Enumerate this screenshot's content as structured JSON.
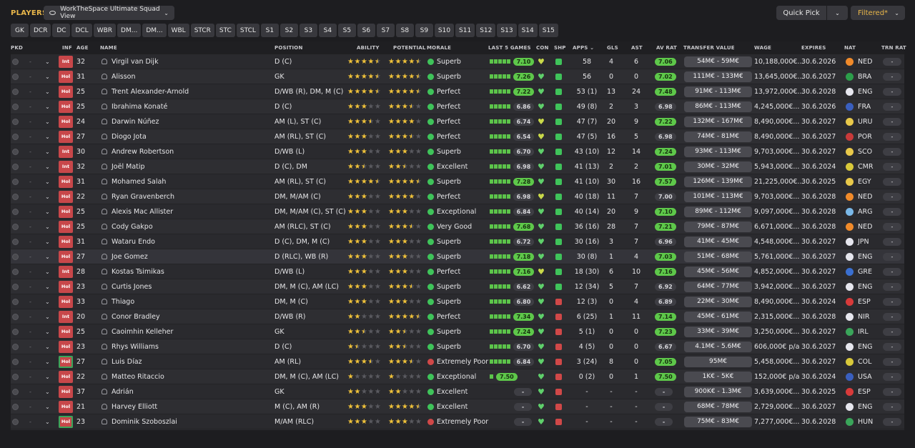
{
  "header": {
    "title": "PLAYERS",
    "view_name": "WorkTheSpace Ultimate Squad View",
    "quick_pick": "Quick Pick",
    "filtered": "Filtered*"
  },
  "positions": [
    "GK",
    "DCR",
    "DC",
    "DCL",
    "WBR",
    "DM...",
    "DM...",
    "WBL",
    "STCR",
    "STC",
    "STCL",
    "S1",
    "S2",
    "S3",
    "S4",
    "S5",
    "S6",
    "S7",
    "S8",
    "S9",
    "S10",
    "S11",
    "S12",
    "S13",
    "S14",
    "S15"
  ],
  "columns": {
    "pkd": "PKD",
    "inf": "INF",
    "age": "AGE",
    "name": "NAME",
    "position": "POSITION",
    "ability": "ABILITY",
    "potential": "POTENTIAL",
    "morale": "MORALE",
    "last5": "LAST 5 GAMES",
    "con": "CON",
    "shp": "SHP",
    "apps": "APPS",
    "gls": "GLS",
    "ast": "AST",
    "avrat": "AV RAT",
    "tv": "TRANSFER VALUE",
    "wage": "WAGE",
    "expires": "EXPIRES",
    "nat": "NAT",
    "trn": "TRN RAT"
  },
  "colors": {
    "accent": "#e8b64a",
    "good": "#5ec84a",
    "bad": "#d04848"
  },
  "players": [
    {
      "inf": "Int",
      "age": "32",
      "name": "Virgil van Dijk",
      "position": "D (C)",
      "ability": 4.5,
      "potential": 4.5,
      "morale": "Superb",
      "mood": "good",
      "l5": 5,
      "l5rat": "7.10",
      "l5g": true,
      "con": "y",
      "shp": "g",
      "apps": "58",
      "gls": "4",
      "ast": "6",
      "avrat": "7.06",
      "avg": true,
      "tv": "54M€ - 59M€",
      "wage": "10,188,000€...",
      "expires": "30.6.2026",
      "nat": "NED",
      "flag": "#f08a2a",
      "trn": "-"
    },
    {
      "inf": "Hol",
      "age": "31",
      "name": "Alisson",
      "position": "GK",
      "ability": 4.5,
      "potential": 4.5,
      "morale": "Superb",
      "mood": "good",
      "l5": 5,
      "l5rat": "7.26",
      "l5g": true,
      "con": "g",
      "shp": "g",
      "apps": "56",
      "gls": "0",
      "ast": "0",
      "avrat": "7.02",
      "avg": true,
      "tv": "111M€ - 133M€",
      "wage": "13,645,000€...",
      "expires": "30.6.2027",
      "nat": "BRA",
      "flag": "#2c9e4a",
      "trn": "-"
    },
    {
      "inf": "Hol",
      "age": "25",
      "name": "Trent Alexander-Arnold",
      "position": "D/WB (R), DM, M (C)",
      "ability": 4.5,
      "potential": 4.5,
      "morale": "Perfect",
      "mood": "good",
      "l5": 5,
      "l5rat": "7.22",
      "l5g": true,
      "con": "g",
      "shp": "g",
      "apps": "53 (1)",
      "gls": "13",
      "ast": "24",
      "avrat": "7.48",
      "avg": true,
      "tv": "91M€ - 113M€",
      "wage": "13,972,000€...",
      "expires": "30.6.2028",
      "nat": "ENG",
      "flag": "#e6e6ee",
      "trn": "-"
    },
    {
      "inf": "Hol",
      "age": "25",
      "name": "Ibrahima Konaté",
      "position": "D (C)",
      "ability": 3,
      "potential": 3.5,
      "morale": "Perfect",
      "mood": "good",
      "l5": 5,
      "l5rat": "6.86",
      "l5g": false,
      "con": "g",
      "shp": "g",
      "apps": "49 (8)",
      "gls": "2",
      "ast": "3",
      "avrat": "6.98",
      "avg": false,
      "tv": "86M€ - 113M€",
      "wage": "4,245,000€...",
      "expires": "30.6.2026",
      "nat": "FRA",
      "flag": "#3a5fbf",
      "trn": "-"
    },
    {
      "inf": "Hol",
      "age": "24",
      "name": "Darwin Núñez",
      "position": "AM (L), ST (C)",
      "ability": 3.5,
      "potential": 4,
      "morale": "Perfect",
      "mood": "good",
      "l5": 5,
      "l5rat": "6.74",
      "l5g": false,
      "con": "y",
      "shp": "g",
      "apps": "47 (7)",
      "gls": "20",
      "ast": "9",
      "avrat": "7.22",
      "avg": true,
      "tv": "132M€ - 167M€",
      "wage": "8,490,000€...",
      "expires": "30.6.2027",
      "nat": "URU",
      "flag": "#e8c84a",
      "trn": "-"
    },
    {
      "inf": "Hol",
      "age": "27",
      "name": "Diogo Jota",
      "position": "AM (RL), ST (C)",
      "ability": 3,
      "potential": 3.5,
      "morale": "Perfect",
      "mood": "good",
      "l5": 5,
      "l5rat": "6.54",
      "l5g": false,
      "con": "y",
      "shp": "g",
      "apps": "47 (5)",
      "gls": "16",
      "ast": "5",
      "avrat": "6.98",
      "avg": false,
      "tv": "74M€ - 81M€",
      "wage": "8,490,000€...",
      "expires": "30.6.2027",
      "nat": "POR",
      "flag": "#c83a3a",
      "trn": "-"
    },
    {
      "inf": "Int",
      "age": "30",
      "name": "Andrew Robertson",
      "position": "D/WB (L)",
      "ability": 3,
      "potential": 3,
      "morale": "Superb",
      "mood": "good",
      "l5": 5,
      "l5rat": "6.70",
      "l5g": false,
      "con": "g",
      "shp": "g",
      "apps": "43 (10)",
      "gls": "12",
      "ast": "14",
      "avrat": "7.24",
      "avg": true,
      "tv": "93M€ - 113M€",
      "wage": "9,703,000€...",
      "expires": "30.6.2027",
      "nat": "SCO",
      "flag": "#e8c84a",
      "trn": "-"
    },
    {
      "inf": "Int",
      "age": "32",
      "name": "Joël Matip",
      "position": "D (C), DM",
      "ability": 2.5,
      "potential": 2.5,
      "morale": "Excellent",
      "mood": "good",
      "l5": 5,
      "l5rat": "6.98",
      "l5g": false,
      "con": "g",
      "shp": "g",
      "apps": "41 (13)",
      "gls": "2",
      "ast": "2",
      "avrat": "7.01",
      "avg": true,
      "tv": "30M€ - 32M€",
      "wage": "5,943,000€...",
      "expires": "30.6.2024",
      "nat": "CMR",
      "flag": "#d8c83a",
      "trn": "-"
    },
    {
      "inf": "Hol",
      "age": "31",
      "name": "Mohamed Salah",
      "position": "AM (RL), ST (C)",
      "ability": 4.5,
      "potential": 4.5,
      "morale": "Superb",
      "mood": "good",
      "l5": 5,
      "l5rat": "7.28",
      "l5g": true,
      "con": "g",
      "shp": "g",
      "apps": "41 (10)",
      "gls": "30",
      "ast": "16",
      "avrat": "7.57",
      "avg": true,
      "tv": "126M€ - 139M€",
      "wage": "21,225,000€...",
      "expires": "30.6.2025",
      "nat": "EGY",
      "flag": "#e8c84a",
      "trn": "-"
    },
    {
      "inf": "Hol",
      "age": "22",
      "name": "Ryan Gravenberch",
      "position": "DM, M/AM (C)",
      "ability": 3,
      "potential": 4,
      "morale": "Perfect",
      "mood": "good",
      "l5": 5,
      "l5rat": "6.98",
      "l5g": false,
      "con": "y",
      "shp": "g",
      "apps": "40 (18)",
      "gls": "11",
      "ast": "7",
      "avrat": "7.00",
      "avg": false,
      "tv": "101M€ - 113M€",
      "wage": "9,703,000€...",
      "expires": "30.6.2028",
      "nat": "NED",
      "flag": "#f08a2a",
      "trn": "-"
    },
    {
      "inf": "Hol",
      "age": "25",
      "name": "Alexis Mac Allister",
      "position": "DM, M/AM (C), ST (C)",
      "ability": 3,
      "potential": 3,
      "morale": "Exceptional",
      "mood": "good",
      "l5": 5,
      "l5rat": "6.84",
      "l5g": false,
      "con": "g",
      "shp": "g",
      "apps": "40 (14)",
      "gls": "20",
      "ast": "9",
      "avrat": "7.10",
      "avg": true,
      "tv": "89M€ - 112M€",
      "wage": "9,097,000€...",
      "expires": "30.6.2028",
      "nat": "ARG",
      "flag": "#7ab8e8",
      "trn": "-"
    },
    {
      "inf": "Hol",
      "age": "25",
      "name": "Cody Gakpo",
      "position": "AM (RLC), ST (C)",
      "ability": 3,
      "potential": 3.5,
      "morale": "Very Good",
      "mood": "good",
      "l5": 5,
      "l5rat": "7.68",
      "l5g": true,
      "con": "g",
      "shp": "g",
      "apps": "36 (16)",
      "gls": "28",
      "ast": "7",
      "avrat": "7.21",
      "avg": true,
      "tv": "79M€ - 87M€",
      "wage": "6,671,000€...",
      "expires": "30.6.2028",
      "nat": "NED",
      "flag": "#f08a2a",
      "trn": "-"
    },
    {
      "inf": "Hol",
      "age": "31",
      "name": "Wataru Endo",
      "position": "D (C), DM, M (C)",
      "ability": 3,
      "potential": 3,
      "morale": "Superb",
      "mood": "good",
      "l5": 5,
      "l5rat": "6.72",
      "l5g": false,
      "con": "g",
      "shp": "g",
      "apps": "30 (16)",
      "gls": "3",
      "ast": "7",
      "avrat": "6.96",
      "avg": false,
      "tv": "41M€ - 45M€",
      "wage": "4,548,000€...",
      "expires": "30.6.2027",
      "nat": "JPN",
      "flag": "#e6e6ee",
      "trn": "-"
    },
    {
      "inf": "Hol",
      "age": "27",
      "name": "Joe Gomez",
      "position": "D (RLC), WB (R)",
      "ability": 3,
      "potential": 3,
      "morale": "Superb",
      "mood": "good",
      "l5": 5,
      "l5rat": "7.18",
      "l5g": true,
      "con": "g",
      "shp": "g",
      "apps": "30 (8)",
      "gls": "1",
      "ast": "4",
      "avrat": "7.03",
      "avg": true,
      "tv": "51M€ - 68M€",
      "wage": "5,761,000€...",
      "expires": "30.6.2027",
      "nat": "ENG",
      "flag": "#e6e6ee",
      "trn": "-"
    },
    {
      "inf": "Int",
      "age": "28",
      "name": "Kostas Tsimikas",
      "position": "D/WB (L)",
      "ability": 3,
      "potential": 3,
      "morale": "Perfect",
      "mood": "good",
      "l5": 5,
      "l5rat": "7.16",
      "l5g": true,
      "con": "y",
      "shp": "g",
      "apps": "18 (30)",
      "gls": "6",
      "ast": "10",
      "avrat": "7.16",
      "avg": true,
      "tv": "45M€ - 56M€",
      "wage": "4,852,000€...",
      "expires": "30.6.2027",
      "nat": "GRE",
      "flag": "#3a6fd0",
      "trn": "-"
    },
    {
      "inf": "Hol",
      "age": "23",
      "name": "Curtis Jones",
      "position": "DM, M (C), AM (LC)",
      "ability": 3,
      "potential": 3.5,
      "morale": "Superb",
      "mood": "good",
      "l5": 5,
      "l5rat": "6.62",
      "l5g": false,
      "con": "g",
      "shp": "g",
      "apps": "12 (34)",
      "gls": "5",
      "ast": "7",
      "avrat": "6.92",
      "avg": false,
      "tv": "64M€ - 77M€",
      "wage": "3,942,000€...",
      "expires": "30.6.2027",
      "nat": "ENG",
      "flag": "#e6e6ee",
      "trn": "-"
    },
    {
      "inf": "Hol",
      "age": "33",
      "name": "Thiago",
      "position": "DM, M (C)",
      "ability": 3,
      "potential": 3,
      "morale": "Superb",
      "mood": "good",
      "l5": 5,
      "l5rat": "6.80",
      "l5g": false,
      "con": "g",
      "shp": "r",
      "apps": "12 (3)",
      "gls": "0",
      "ast": "4",
      "avrat": "6.89",
      "avg": false,
      "tv": "22M€ - 30M€",
      "wage": "8,490,000€...",
      "expires": "30.6.2024",
      "nat": "ESP",
      "flag": "#d83a3a",
      "trn": "-"
    },
    {
      "inf": "Int",
      "age": "20",
      "name": "Conor Bradley",
      "position": "D/WB (R)",
      "ability": 2,
      "potential": 4.5,
      "morale": "Perfect",
      "mood": "good",
      "l5": 5,
      "l5rat": "7.34",
      "l5g": true,
      "con": "g",
      "shp": "r",
      "apps": "6 (25)",
      "gls": "1",
      "ast": "11",
      "avrat": "7.14",
      "avg": true,
      "tv": "45M€ - 61M€",
      "wage": "2,315,000€...",
      "expires": "30.6.2028",
      "nat": "NIR",
      "flag": "#e6e6ee",
      "trn": "-"
    },
    {
      "inf": "Hol",
      "age": "25",
      "name": "Caoimhin Kelleher",
      "position": "GK",
      "ability": 2.5,
      "potential": 2.5,
      "morale": "Superb",
      "mood": "good",
      "l5": 5,
      "l5rat": "7.24",
      "l5g": true,
      "con": "g",
      "shp": "r",
      "apps": "5 (1)",
      "gls": "0",
      "ast": "0",
      "avrat": "7.23",
      "avg": true,
      "tv": "33M€ - 39M€",
      "wage": "3,250,000€...",
      "expires": "30.6.2027",
      "nat": "IRL",
      "flag": "#3aa55a",
      "trn": "-"
    },
    {
      "inf": "Hol",
      "age": "23",
      "name": "Rhys Williams",
      "position": "D (C)",
      "ability": 1.5,
      "potential": 2.5,
      "morale": "Superb",
      "mood": "good",
      "l5": 5,
      "l5rat": "6.70",
      "l5g": false,
      "con": "g",
      "shp": "r",
      "apps": "4 (5)",
      "gls": "0",
      "ast": "0",
      "avrat": "6.67",
      "avg": false,
      "tv": "4.1M€ - 5.6M€",
      "wage": "606,000€ p/a",
      "expires": "30.6.2027",
      "nat": "ENG",
      "flag": "#e6e6ee",
      "trn": "-"
    },
    {
      "inf": "HolG",
      "age": "27",
      "name": "Luis Díaz",
      "position": "AM (RL)",
      "ability": 3.5,
      "potential": 3.5,
      "morale": "Extremely Poor",
      "mood": "bad",
      "l5": 5,
      "l5rat": "6.84",
      "l5g": false,
      "con": "g",
      "shp": "r",
      "apps": "3 (24)",
      "gls": "8",
      "ast": "0",
      "avrat": "7.05",
      "avg": true,
      "tv": "95M€",
      "wage": "5,458,000€...",
      "expires": "30.6.2027",
      "nat": "COL",
      "flag": "#d8c83a",
      "trn": "-"
    },
    {
      "inf": "Hol",
      "age": "22",
      "name": "Matteo Ritaccio",
      "position": "DM, M (C), AM (LC)",
      "ability": 1,
      "potential": 1,
      "morale": "Exceptional",
      "mood": "good",
      "l5": 1,
      "l5rat": "7.50",
      "l5g": true,
      "con": "g",
      "shp": "r",
      "apps": "0 (2)",
      "gls": "0",
      "ast": "1",
      "avrat": "7.50",
      "avg": true,
      "tv": "1K€ - 5K€",
      "wage": "152,000€ p/a",
      "expires": "30.6.2024",
      "nat": "USA",
      "flag": "#3a5fbf",
      "trn": "-"
    },
    {
      "inf": "Hol",
      "age": "37",
      "name": "Adrián",
      "position": "GK",
      "ability": 2,
      "potential": 2,
      "morale": "Excellent",
      "mood": "good",
      "l5": 0,
      "l5rat": "-",
      "l5g": false,
      "con": "g",
      "shp": "r",
      "apps": "-",
      "gls": "-",
      "ast": "-",
      "avrat": "-",
      "avg": false,
      "tv": "900K€ - 1.3M€",
      "wage": "3,639,000€...",
      "expires": "30.6.2025",
      "nat": "ESP",
      "flag": "#d83a3a",
      "trn": "-"
    },
    {
      "inf": "Hol",
      "age": "21",
      "name": "Harvey Elliott",
      "position": "M (C), AM (R)",
      "ability": 3,
      "potential": 4.5,
      "morale": "Excellent",
      "mood": "good",
      "l5": 0,
      "l5rat": "-",
      "l5g": false,
      "con": "g",
      "shp": "r",
      "apps": "-",
      "gls": "-",
      "ast": "-",
      "avrat": "-",
      "avg": false,
      "tv": "68M€ - 78M€",
      "wage": "2,729,000€...",
      "expires": "30.6.2027",
      "nat": "ENG",
      "flag": "#e6e6ee",
      "trn": "-"
    },
    {
      "inf": "HolG",
      "age": "23",
      "name": "Dominik Szoboszlai",
      "position": "M/AM (RLC)",
      "ability": 3,
      "potential": 3,
      "morale": "Extremely Poor",
      "mood": "bad",
      "l5": 0,
      "l5rat": "-",
      "l5g": false,
      "con": "g",
      "shp": "r",
      "apps": "-",
      "gls": "-",
      "ast": "-",
      "avrat": "-",
      "avg": false,
      "tv": "75M€ - 83M€",
      "wage": "7,277,000€...",
      "expires": "30.6.2028",
      "nat": "HUN",
      "flag": "#3aa55a",
      "trn": "-"
    }
  ]
}
